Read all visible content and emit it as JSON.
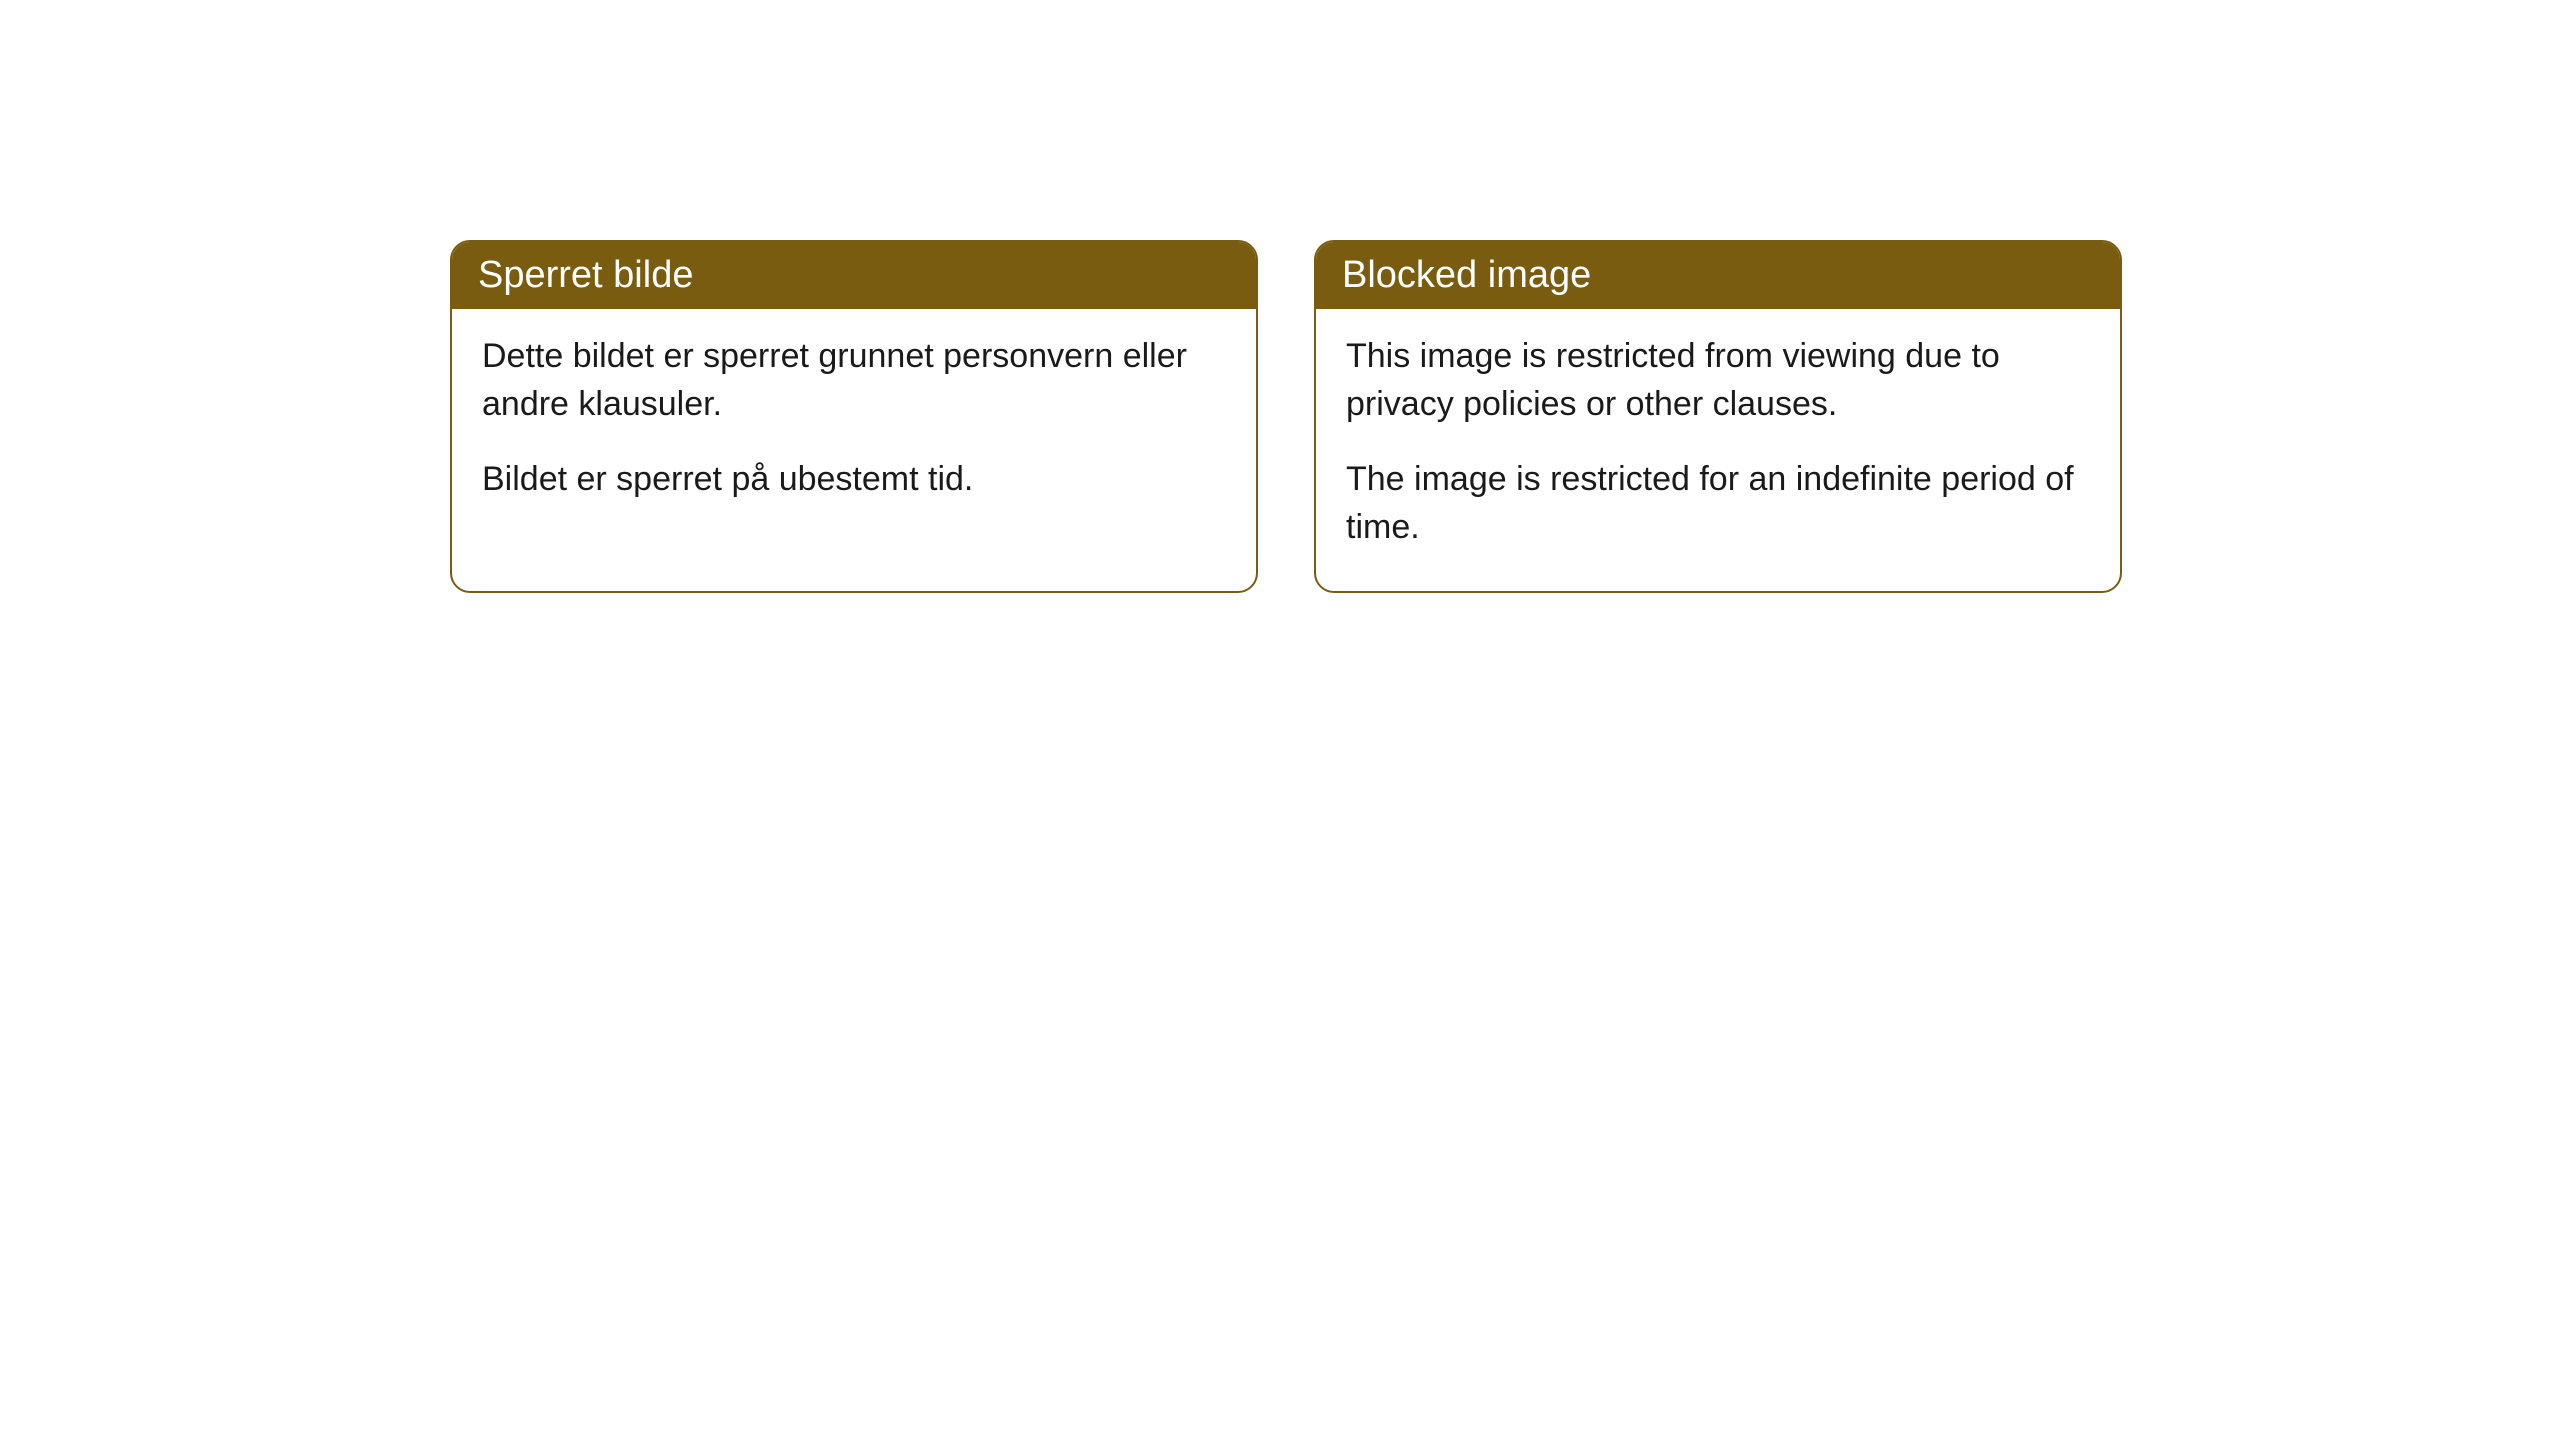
{
  "cards": [
    {
      "title": "Sperret bilde",
      "paragraph1": "Dette bildet er sperret grunnet personvern eller andre klausuler.",
      "paragraph2": "Bildet er sperret på ubestemt tid."
    },
    {
      "title": "Blocked image",
      "paragraph1": "This image is restricted from viewing due to privacy policies or other clauses.",
      "paragraph2": "The image is restricted for an indefinite period of time."
    }
  ],
  "style": {
    "header_background": "#7a5c10",
    "header_text_color": "#ffffff",
    "border_color": "#7a5c10",
    "body_background": "#ffffff",
    "body_text_color": "#1a1a1a",
    "border_radius": 20,
    "title_fontsize": 38,
    "body_fontsize": 34
  }
}
